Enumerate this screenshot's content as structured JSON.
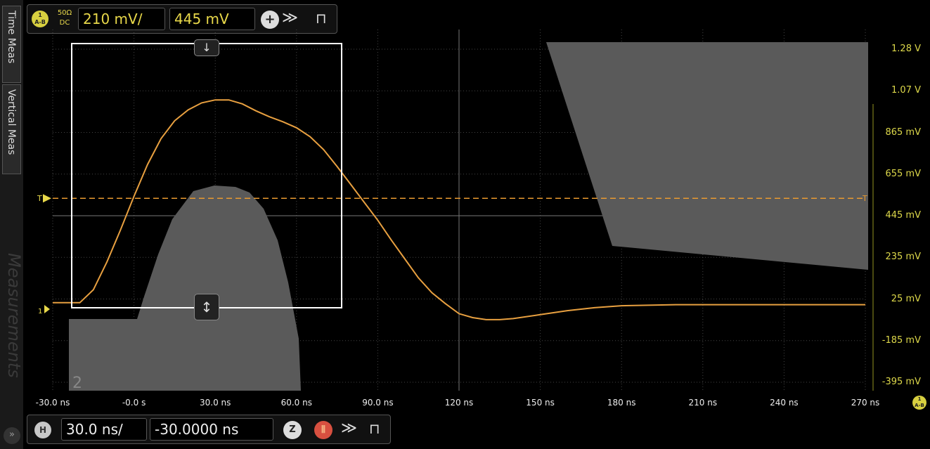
{
  "sidebar": {
    "tab_time_meas": "Time Meas",
    "tab_vertical_meas": "Vertical Meas",
    "watermark": "Measurements",
    "corner_icon": "»"
  },
  "vertical_bar": {
    "channel_badge_top": "1",
    "channel_badge_bottom": "A-B",
    "impedance": "50Ω",
    "coupling": "DC",
    "scale": "210 mV/",
    "offset": "445 mV",
    "add_icon": "+",
    "more_icon": "≫",
    "pin_icon": "⊓"
  },
  "horizontal_bar": {
    "badge": "H",
    "scale": "30.0 ns/",
    "position": "-30.0000 ns",
    "zoom_icon": "Z",
    "run_icon": "⦀",
    "more_icon": "≫",
    "pin_icon": "⊓"
  },
  "y_labels": [
    "1.28 V",
    "1.07 V",
    "865 mV",
    "655 mV",
    "445 mV",
    "235 mV",
    "25 mV",
    "-185 mV",
    "-395 mV"
  ],
  "x_labels": [
    "-30.0 ns",
    "-0.0 s",
    "30.0 ns",
    "60.0 ns",
    "90.0 ns",
    "120 ns",
    "150 ns",
    "180 ns",
    "210 ns",
    "240 ns",
    "270 ns"
  ],
  "trigger": {
    "left_marker": "T",
    "right_marker": "T"
  },
  "ground_marker": "1",
  "region_label": "2",
  "x_axis_badge": {
    "top": "1",
    "bottom": "A-B"
  },
  "colors": {
    "trace": "#e8a040",
    "trigger_line": "#e89a30",
    "axis_text": "#ddd84a",
    "mask": "#5a5a5a",
    "level_bar": "#4a4a10"
  },
  "chart_data": {
    "type": "line",
    "x_unit": "ns",
    "y_unit": "mV",
    "xlim": [
      -30,
      270
    ],
    "ylim": [
      -395,
      1280
    ],
    "trigger_level_mV": 530,
    "series": [
      {
        "x": [
          -30,
          -20,
          -15,
          -10,
          -5,
          0,
          5,
          10,
          15,
          20,
          25,
          30,
          35,
          40,
          45,
          50,
          55,
          60,
          65,
          70,
          75,
          80,
          85,
          90,
          95,
          100,
          105,
          110,
          115,
          120,
          125,
          130,
          135,
          140,
          150,
          160,
          170,
          180,
          200,
          220,
          240,
          270
        ],
        "y": [
          5,
          5,
          70,
          210,
          370,
          540,
          700,
          830,
          920,
          975,
          1010,
          1025,
          1025,
          1005,
          970,
          940,
          915,
          885,
          840,
          775,
          690,
          600,
          510,
          420,
          320,
          225,
          130,
          55,
          0,
          -50,
          -70,
          -80,
          -80,
          -75,
          -55,
          -35,
          -20,
          -10,
          -5,
          -5,
          -5,
          -5
        ]
      }
    ]
  }
}
